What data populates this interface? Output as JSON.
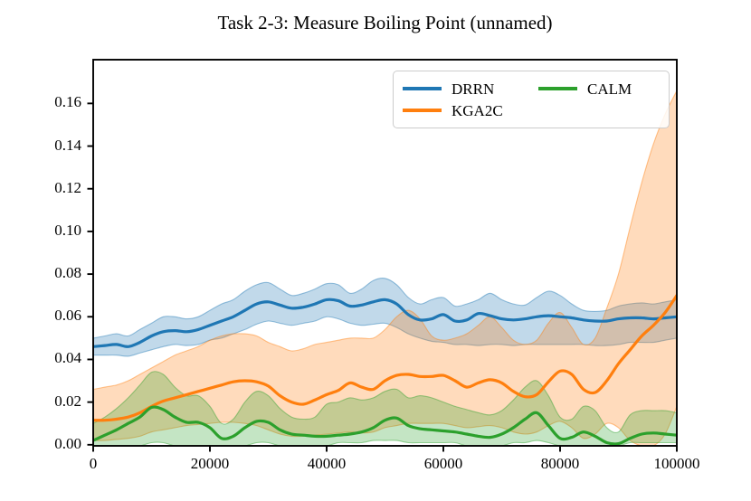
{
  "figure": {
    "background": "#ffffff"
  },
  "chart_data": {
    "type": "line",
    "title": "Task 2-3: Measure Boiling Point (unnamed)",
    "xlabel": "",
    "ylabel": "",
    "xlim": [
      0,
      100000
    ],
    "ylim": [
      -0.0005,
      0.1805
    ],
    "grid": false,
    "legend_position": "upper right",
    "legend_columns": 2,
    "xticks": [
      0,
      20000,
      40000,
      60000,
      80000,
      100000
    ],
    "xtick_labels": [
      "0",
      "20000",
      "40000",
      "60000",
      "80000",
      "100000"
    ],
    "yticks": [
      0.0,
      0.02,
      0.04,
      0.06,
      0.08,
      0.1,
      0.12,
      0.14,
      0.16
    ],
    "ytick_labels": [
      "0.00",
      "0.02",
      "0.04",
      "0.06",
      "0.08",
      "0.10",
      "0.12",
      "0.14",
      "0.16"
    ],
    "x": [
      0,
      2000,
      4000,
      6000,
      8000,
      10000,
      12000,
      14000,
      16000,
      18000,
      20000,
      22000,
      24000,
      26000,
      28000,
      30000,
      32000,
      34000,
      36000,
      38000,
      40000,
      42000,
      44000,
      46000,
      48000,
      50000,
      52000,
      54000,
      56000,
      58000,
      60000,
      62000,
      64000,
      66000,
      68000,
      70000,
      72000,
      74000,
      76000,
      78000,
      80000,
      82000,
      84000,
      86000,
      88000,
      90000,
      92000,
      94000,
      96000,
      98000,
      100000
    ],
    "series": [
      {
        "name": "DRRN",
        "color": "#1f77b4",
        "values": [
          0.046,
          0.0465,
          0.047,
          0.046,
          0.048,
          0.051,
          0.053,
          0.0535,
          0.053,
          0.054,
          0.056,
          0.058,
          0.06,
          0.063,
          0.066,
          0.067,
          0.0655,
          0.064,
          0.0645,
          0.066,
          0.068,
          0.0675,
          0.065,
          0.0655,
          0.067,
          0.068,
          0.066,
          0.061,
          0.0585,
          0.059,
          0.061,
          0.058,
          0.0585,
          0.0615,
          0.0605,
          0.059,
          0.0585,
          0.059,
          0.06,
          0.0605,
          0.06,
          0.0595,
          0.0585,
          0.058,
          0.058,
          0.059,
          0.0595,
          0.0595,
          0.059,
          0.0595,
          0.06
        ],
        "band_upper": [
          0.05,
          0.051,
          0.052,
          0.051,
          0.054,
          0.057,
          0.06,
          0.06,
          0.059,
          0.06,
          0.063,
          0.066,
          0.068,
          0.072,
          0.075,
          0.076,
          0.073,
          0.07,
          0.071,
          0.073,
          0.0755,
          0.075,
          0.071,
          0.073,
          0.077,
          0.078,
          0.075,
          0.069,
          0.066,
          0.068,
          0.069,
          0.065,
          0.066,
          0.068,
          0.071,
          0.068,
          0.066,
          0.0655,
          0.069,
          0.072,
          0.07,
          0.066,
          0.063,
          0.0625,
          0.063,
          0.065,
          0.066,
          0.0665,
          0.066,
          0.067,
          0.068
        ],
        "band_lower": [
          0.042,
          0.042,
          0.042,
          0.0415,
          0.043,
          0.0445,
          0.046,
          0.047,
          0.0465,
          0.047,
          0.049,
          0.05,
          0.052,
          0.054,
          0.0565,
          0.058,
          0.057,
          0.056,
          0.057,
          0.058,
          0.06,
          0.059,
          0.057,
          0.056,
          0.0565,
          0.057,
          0.055,
          0.052,
          0.05,
          0.0485,
          0.048,
          0.047,
          0.047,
          0.0465,
          0.047,
          0.047,
          0.0465,
          0.047,
          0.047,
          0.047,
          0.047,
          0.047,
          0.047,
          0.0465,
          0.0465,
          0.047,
          0.048,
          0.048,
          0.048,
          0.049,
          0.05
        ]
      },
      {
        "name": "KGA2C",
        "color": "#ff7f0e",
        "values": [
          0.0115,
          0.0115,
          0.012,
          0.013,
          0.015,
          0.018,
          0.0205,
          0.022,
          0.0235,
          0.025,
          0.0265,
          0.028,
          0.0295,
          0.03,
          0.0295,
          0.0275,
          0.023,
          0.02,
          0.019,
          0.021,
          0.0235,
          0.0255,
          0.029,
          0.027,
          0.026,
          0.03,
          0.0325,
          0.033,
          0.032,
          0.032,
          0.0325,
          0.03,
          0.027,
          0.029,
          0.0305,
          0.029,
          0.025,
          0.0225,
          0.0235,
          0.0295,
          0.0345,
          0.033,
          0.026,
          0.0245,
          0.03,
          0.038,
          0.0445,
          0.051,
          0.056,
          0.062,
          0.07
        ],
        "band_upper": [
          0.026,
          0.027,
          0.028,
          0.03,
          0.033,
          0.036,
          0.039,
          0.042,
          0.044,
          0.046,
          0.049,
          0.051,
          0.052,
          0.052,
          0.051,
          0.048,
          0.046,
          0.044,
          0.045,
          0.047,
          0.048,
          0.049,
          0.05,
          0.05,
          0.05,
          0.054,
          0.06,
          0.063,
          0.059,
          0.051,
          0.049,
          0.05,
          0.052,
          0.056,
          0.06,
          0.055,
          0.049,
          0.047,
          0.049,
          0.057,
          0.062,
          0.055,
          0.047,
          0.05,
          0.064,
          0.08,
          0.102,
          0.123,
          0.141,
          0.155,
          0.166
        ],
        "band_lower": [
          0.002,
          0.002,
          0.0025,
          0.003,
          0.004,
          0.006,
          0.007,
          0.008,
          0.009,
          0.0095,
          0.01,
          0.0105,
          0.0105,
          0.01,
          0.009,
          0.007,
          0.005,
          0.004,
          0.004,
          0.0045,
          0.005,
          0.0055,
          0.006,
          0.0055,
          0.006,
          0.008,
          0.009,
          0.01,
          0.01,
          0.01,
          0.01,
          0.009,
          0.008,
          0.0085,
          0.009,
          0.008,
          0.006,
          0.005,
          0.006,
          0.009,
          0.011,
          0.008,
          0.003,
          0.005,
          0.01,
          0.008,
          0.002,
          0.0,
          0.0,
          0.005,
          0.018
        ]
      },
      {
        "name": "CALM",
        "color": "#2ca02c",
        "values": [
          0.002,
          0.0045,
          0.007,
          0.01,
          0.013,
          0.0175,
          0.0165,
          0.013,
          0.0105,
          0.0105,
          0.008,
          0.003,
          0.004,
          0.008,
          0.011,
          0.0105,
          0.007,
          0.005,
          0.0045,
          0.004,
          0.004,
          0.0045,
          0.005,
          0.006,
          0.008,
          0.0115,
          0.0125,
          0.009,
          0.0075,
          0.007,
          0.0065,
          0.006,
          0.005,
          0.004,
          0.0035,
          0.005,
          0.008,
          0.012,
          0.015,
          0.009,
          0.003,
          0.0035,
          0.006,
          0.004,
          0.001,
          0.0005,
          0.003,
          0.005,
          0.0055,
          0.005,
          0.0045
        ],
        "band_upper": [
          0.01,
          0.013,
          0.017,
          0.022,
          0.028,
          0.034,
          0.033,
          0.027,
          0.023,
          0.023,
          0.018,
          0.01,
          0.012,
          0.02,
          0.025,
          0.023,
          0.017,
          0.013,
          0.012,
          0.013,
          0.019,
          0.02,
          0.022,
          0.021,
          0.022,
          0.025,
          0.026,
          0.022,
          0.023,
          0.022,
          0.02,
          0.018,
          0.0165,
          0.015,
          0.014,
          0.016,
          0.021,
          0.027,
          0.03,
          0.023,
          0.013,
          0.012,
          0.018,
          0.016,
          0.008,
          0.006,
          0.014,
          0.016,
          0.016,
          0.016,
          0.015
        ],
        "band_lower": [
          0,
          0,
          0,
          0,
          0,
          0.001,
          0.001,
          0,
          0,
          0,
          0,
          0,
          0,
          0,
          0.001,
          0.001,
          0,
          0,
          0,
          0,
          0,
          0.001,
          0.001,
          0.001,
          0.002,
          0.002,
          0.002,
          0.001,
          0.001,
          0.001,
          0.001,
          0.001,
          0,
          0,
          0,
          0,
          0.001,
          0.001,
          0.002,
          0.001,
          0,
          0,
          0,
          0,
          0,
          0,
          0.001,
          0.001,
          0.001,
          0.001,
          0.001
        ]
      }
    ]
  },
  "legend": {
    "entries": [
      {
        "label": "DRRN",
        "color": "#1f77b4"
      },
      {
        "label": "KGA2C",
        "color": "#ff7f0e"
      },
      {
        "label": "CALM",
        "color": "#2ca02c"
      }
    ]
  },
  "style": {
    "axis_color": "#000000",
    "band_fill_opacity": 0.28,
    "band_edge_opacity": 0.45,
    "line_width": 3.2
  }
}
